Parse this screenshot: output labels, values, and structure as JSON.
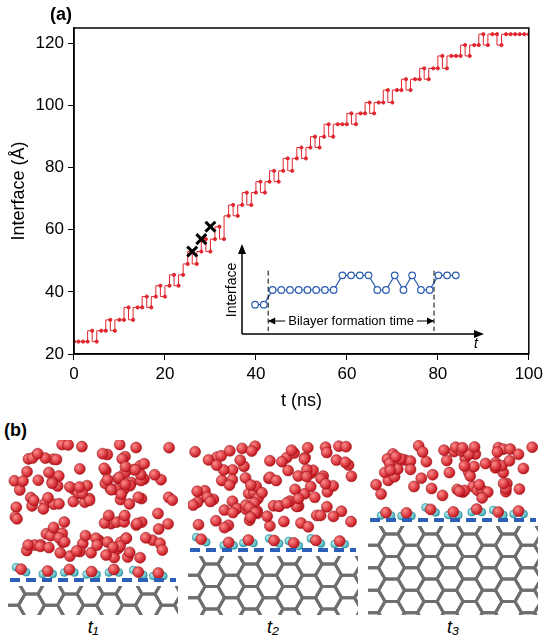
{
  "panel_labels": [
    "(a)",
    "(b)"
  ],
  "chart_data": [
    {
      "type": "line",
      "xlabel": "t (ns)",
      "ylabel": "Interface (Å)",
      "x": [
        0,
        1,
        2,
        3,
        4,
        5,
        6,
        7,
        8,
        9,
        10,
        11,
        12,
        13,
        14,
        15,
        16,
        17,
        18,
        19,
        20,
        21,
        22,
        23,
        24,
        25,
        26,
        27,
        28,
        29,
        30,
        31,
        32,
        33,
        34,
        35,
        36,
        37,
        38,
        39,
        40,
        41,
        42,
        43,
        44,
        45,
        46,
        47,
        48,
        49,
        50,
        51,
        52,
        53,
        54,
        55,
        56,
        57,
        58,
        59,
        60,
        61,
        62,
        63,
        64,
        65,
        66,
        67,
        68,
        69,
        70,
        71,
        72,
        73,
        74,
        75,
        76,
        77,
        78,
        79,
        80,
        81,
        82,
        83,
        84,
        85,
        86,
        87,
        88,
        89,
        90,
        91,
        92,
        93,
        94,
        95,
        96,
        97,
        98,
        99,
        100
      ],
      "series": [
        {
          "color": "#e0262e",
          "marker": "circle",
          "line_style": "steps",
          "values": [
            24,
            24,
            24,
            24,
            27.5,
            24,
            27.5,
            27.5,
            31,
            27.5,
            31,
            31,
            35,
            31,
            35,
            35,
            38.5,
            35,
            38.5,
            42,
            38.5,
            42,
            45.5,
            42,
            45.5,
            49,
            53,
            49,
            53,
            57,
            53,
            57,
            61,
            57,
            64.5,
            68,
            64.5,
            68,
            72,
            68,
            72,
            75.5,
            72,
            75.5,
            79,
            75.5,
            79,
            83,
            79,
            83,
            86.5,
            83,
            86.5,
            90,
            86.5,
            90,
            94,
            90,
            94,
            94,
            94,
            97.5,
            94,
            97.5,
            97.5,
            101,
            97.5,
            101,
            101,
            105,
            101,
            105,
            105,
            108.5,
            105,
            108.5,
            108.5,
            112,
            108.5,
            112,
            112,
            116,
            112,
            116,
            116,
            116,
            119.5,
            116,
            119.5,
            119.5,
            123,
            119.5,
            123,
            123,
            119.5,
            123,
            123,
            123,
            123,
            123,
            123
          ]
        },
        {
          "type": "scatter",
          "color": "#000000",
          "marker": "x",
          "x": [
            26,
            28,
            30
          ],
          "values": [
            53,
            57,
            61
          ]
        }
      ],
      "xlim": [
        0,
        100
      ],
      "ylim": [
        20,
        125
      ],
      "xticks": [
        0,
        20,
        40,
        60,
        80,
        100
      ],
      "yticks": [
        20,
        40,
        60,
        80,
        100,
        120
      ],
      "grid": false
    },
    {
      "type": "line",
      "xlabel": "t",
      "ylabel": "Interface",
      "x": [
        0,
        1,
        2,
        3,
        4,
        5,
        6,
        7,
        8,
        9,
        10,
        11,
        12,
        13,
        14,
        15,
        16,
        17,
        18,
        19,
        20,
        21,
        22,
        23
      ],
      "values": [
        0,
        0,
        1,
        1,
        1,
        1,
        1,
        1,
        1,
        1,
        2,
        2,
        2,
        2,
        1,
        1,
        2,
        1,
        2,
        1,
        1,
        2,
        2,
        2
      ],
      "color": "#2a5db0",
      "marker": "open_circle",
      "annotations": [
        {
          "text": "Bilayer formation time",
          "x_start": 1.5,
          "x_end": 20.5
        }
      ],
      "xlim": [
        -1.5,
        26
      ],
      "ylim": [
        -2,
        4
      ],
      "tick_labels": false
    }
  ],
  "snapshots": {
    "labels": [
      "t₁",
      "t₂",
      "t₃"
    ]
  }
}
